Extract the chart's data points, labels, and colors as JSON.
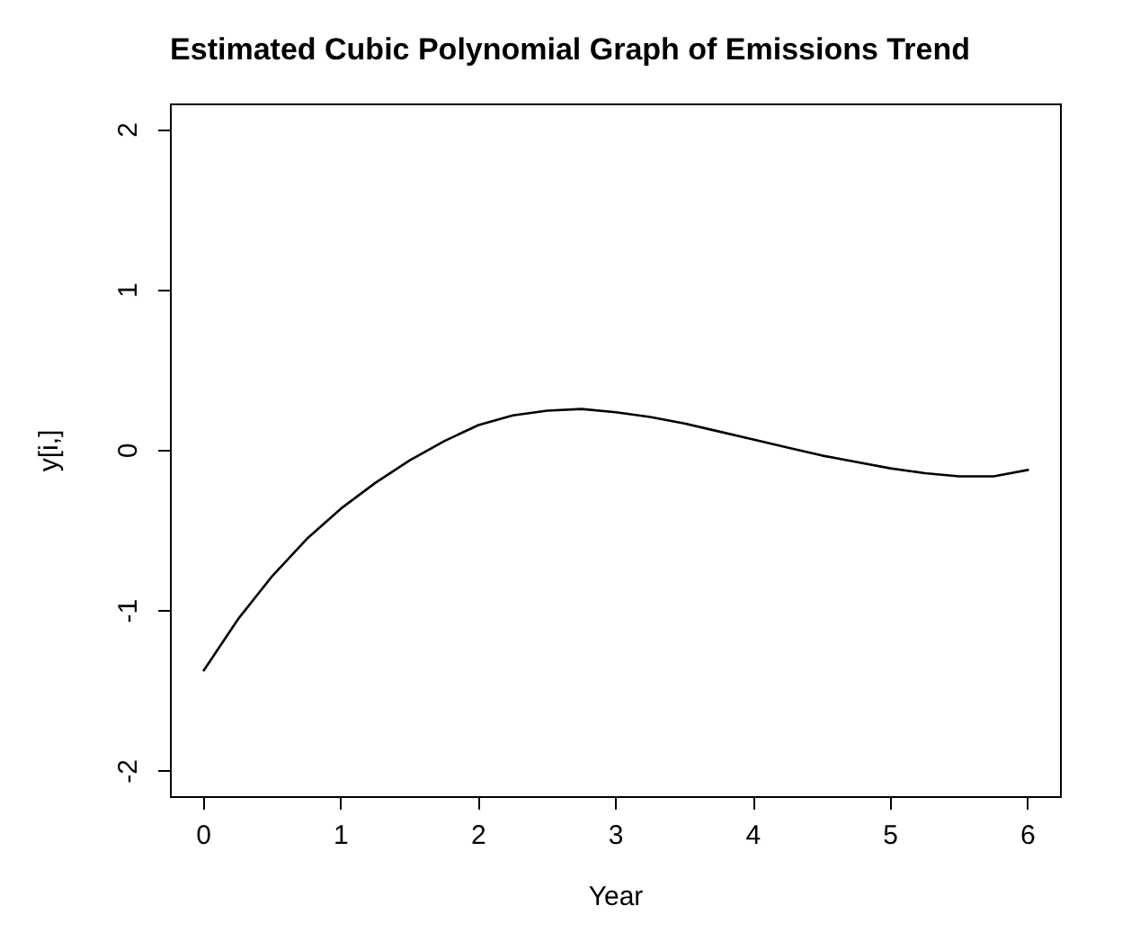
{
  "chart_data": {
    "type": "line",
    "title": "Estimated Cubic Polynomial Graph of Emissions Trend",
    "xlabel": "Year",
    "ylabel": "y[i,]",
    "series": [
      {
        "color": "#000000",
        "x": [
          0,
          0.25,
          0.5,
          0.75,
          1,
          1.25,
          1.5,
          1.75,
          2,
          2.25,
          2.5,
          2.75,
          3,
          3.25,
          3.5,
          3.75,
          4,
          4.25,
          4.5,
          4.75,
          5,
          5.25,
          5.5,
          5.75,
          6
        ],
        "values": [
          -1.37,
          -1.05,
          -0.78,
          -0.55,
          -0.36,
          -0.2,
          -0.06,
          0.06,
          0.16,
          0.22,
          0.25,
          0.26,
          0.24,
          0.21,
          0.17,
          0.12,
          0.07,
          0.02,
          -0.03,
          -0.07,
          -0.11,
          -0.14,
          -0.16,
          -0.16,
          -0.12
        ]
      }
    ],
    "xlim": [
      -0.24,
      6.24
    ],
    "xticks": [
      0,
      1,
      2,
      3,
      4,
      5,
      6
    ],
    "ylim": [
      -2.16,
      2.16
    ],
    "yticks": [
      -2,
      -1,
      0,
      1,
      2
    ],
    "grid": false,
    "marker": "none",
    "line_style": "solid"
  }
}
